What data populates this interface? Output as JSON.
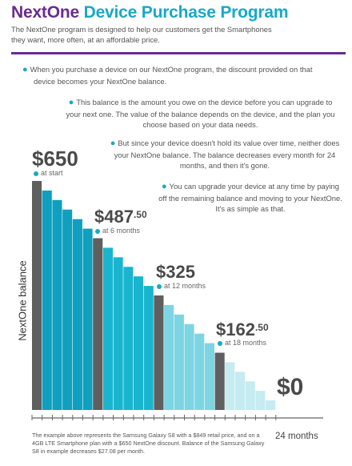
{
  "header": {
    "title_brand": "NextOne",
    "title_rest": "Device Purchase Program",
    "intro": "The NextOne program is designed to help our customers get the Smartphones they want, more often, at an affordable price."
  },
  "bullets": [
    {
      "line1": "When you purchase a device on our NextOne program, the discount provided on that",
      "line2": "device becomes your NextOne balance."
    },
    {
      "text": "This balance is the amount you owe on the device before you can upgrade to your next one. The value of the balance depends on the device, and the plan you choose based on your data needs."
    },
    {
      "text": "But since your device doesn't hold its value over time, neither does your NextOne balance. The balance decreases every month for 24 months, and then it's gone."
    },
    {
      "text": "You can upgrade your device at any time by paying off the remaining balance and moving to your NextOne. It's as simple as that."
    }
  ],
  "milestones": [
    {
      "dollars": "$650",
      "cents": "",
      "label": "at start"
    },
    {
      "dollars": "$487",
      "cents": ".50",
      "label": "at 6 months"
    },
    {
      "dollars": "$325",
      "cents": "",
      "label": "at 12 months"
    },
    {
      "dollars": "$162",
      "cents": ".50",
      "label": "at 18 months"
    },
    {
      "dollars": "$0",
      "cents": "",
      "label": ""
    }
  ],
  "footnote": "The example above represents the Samsung Galaxy S8 with a $849 retail price, and on a 4GB LTE Smartphone plan with a $650 NextOne discount. Balance of the Samsung Galaxy S8 in example decreases $27.08 per month.",
  "chart_data": {
    "type": "bar",
    "ylabel": "NextOne balance",
    "xlabel": "24 months",
    "x": [
      0,
      1,
      2,
      3,
      4,
      5,
      6,
      7,
      8,
      9,
      10,
      11,
      12,
      13,
      14,
      15,
      16,
      17,
      18,
      19,
      20,
      21,
      22,
      23
    ],
    "values": [
      650,
      622.92,
      595.83,
      568.75,
      541.67,
      514.58,
      487.5,
      460.42,
      433.33,
      406.25,
      379.17,
      352.08,
      325,
      297.92,
      270.83,
      243.75,
      216.67,
      189.58,
      162.5,
      135.42,
      108.33,
      81.25,
      54.17,
      27.08
    ],
    "ylim": [
      0,
      650
    ],
    "colors": {
      "milestone": "#5f5f5f",
      "phase1": "#0f9fbf",
      "phase2": "#19b5cf",
      "phase3": "#7dd5e3",
      "phase4": "#c6ebf1"
    }
  }
}
